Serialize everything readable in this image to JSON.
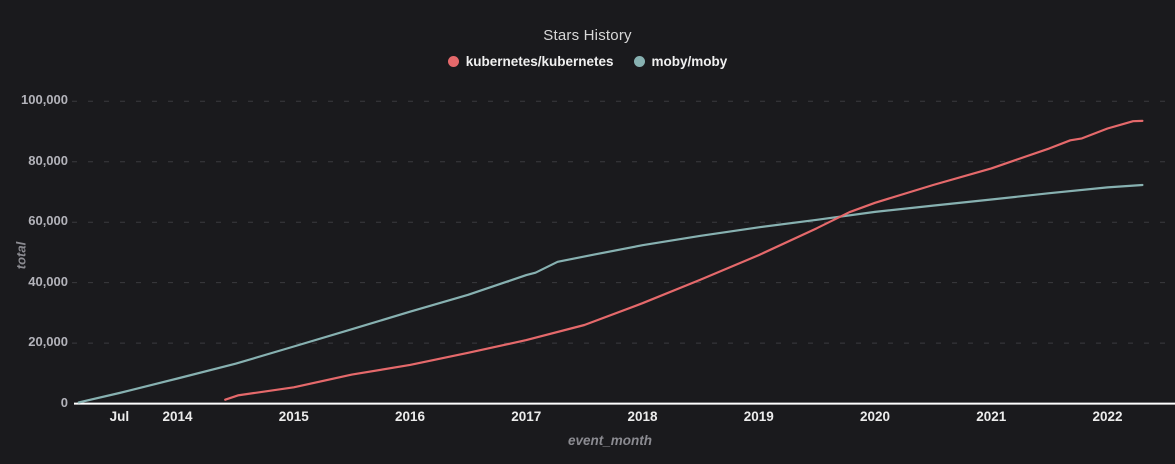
{
  "title": "Stars History",
  "legend": [
    {
      "label": "kubernetes/kubernetes",
      "color": "#e5696b"
    },
    {
      "label": "moby/moby",
      "color": "#87b1b1"
    }
  ],
  "colors": {
    "background": "#1a1a1d",
    "axis_line": "#ffffff",
    "gridline": "#3a3a3f",
    "series_kubernetes": "#e5696b",
    "series_moby": "#87b1b1"
  },
  "chart_data": {
    "type": "line",
    "title": "Stars History",
    "xlabel": "event_month",
    "ylabel": "total",
    "legend_position": "top-center",
    "grid": "horizontal-dashed",
    "xlim": [
      2013.05,
      2022.58
    ],
    "ylim": [
      0,
      103000
    ],
    "y_ticks": [
      {
        "label": "0",
        "value": 0
      },
      {
        "label": "20,000",
        "value": 20000
      },
      {
        "label": "40,000",
        "value": 40000
      },
      {
        "label": "60,000",
        "value": 60000
      },
      {
        "label": "80,000",
        "value": 80000
      },
      {
        "label": "100,000",
        "value": 100000
      }
    ],
    "x_ticks": [
      {
        "label": "Jul",
        "value": 2013.5
      },
      {
        "label": "2014",
        "value": 2014
      },
      {
        "label": "2015",
        "value": 2015
      },
      {
        "label": "2016",
        "value": 2016
      },
      {
        "label": "2017",
        "value": 2017
      },
      {
        "label": "2018",
        "value": 2018
      },
      {
        "label": "2019",
        "value": 2019
      },
      {
        "label": "2020",
        "value": 2020
      },
      {
        "label": "2021",
        "value": 2021
      },
      {
        "label": "2022",
        "value": 2022
      }
    ],
    "series": [
      {
        "name": "moby/moby",
        "color": "#87b1b1",
        "points": [
          [
            2013.15,
            400
          ],
          [
            2013.5,
            3500
          ],
          [
            2014.0,
            8300
          ],
          [
            2014.5,
            13200
          ],
          [
            2015.0,
            18900
          ],
          [
            2015.5,
            24600
          ],
          [
            2016.0,
            30400
          ],
          [
            2016.5,
            36000
          ],
          [
            2017.0,
            42500
          ],
          [
            2017.08,
            43300
          ],
          [
            2017.27,
            46900
          ],
          [
            2017.6,
            49400
          ],
          [
            2018.0,
            52400
          ],
          [
            2018.5,
            55500
          ],
          [
            2019.0,
            58300
          ],
          [
            2019.5,
            60800
          ],
          [
            2020.0,
            63400
          ],
          [
            2020.5,
            65500
          ],
          [
            2021.0,
            67500
          ],
          [
            2021.5,
            69600
          ],
          [
            2022.0,
            71500
          ],
          [
            2022.3,
            72300
          ]
        ]
      },
      {
        "name": "kubernetes/kubernetes",
        "color": "#e5696b",
        "points": [
          [
            2014.41,
            1300
          ],
          [
            2014.52,
            2700
          ],
          [
            2015.0,
            5400
          ],
          [
            2015.5,
            9600
          ],
          [
            2016.0,
            12800
          ],
          [
            2016.5,
            16800
          ],
          [
            2017.0,
            21000
          ],
          [
            2017.5,
            26000
          ],
          [
            2018.0,
            33200
          ],
          [
            2018.5,
            41000
          ],
          [
            2019.0,
            49100
          ],
          [
            2019.5,
            58000
          ],
          [
            2019.78,
            63300
          ],
          [
            2020.0,
            66400
          ],
          [
            2020.5,
            72300
          ],
          [
            2021.0,
            77800
          ],
          [
            2021.5,
            84400
          ],
          [
            2021.68,
            87100
          ],
          [
            2021.78,
            87700
          ],
          [
            2022.0,
            91000
          ],
          [
            2022.22,
            93400
          ],
          [
            2022.3,
            93500
          ]
        ]
      }
    ]
  }
}
